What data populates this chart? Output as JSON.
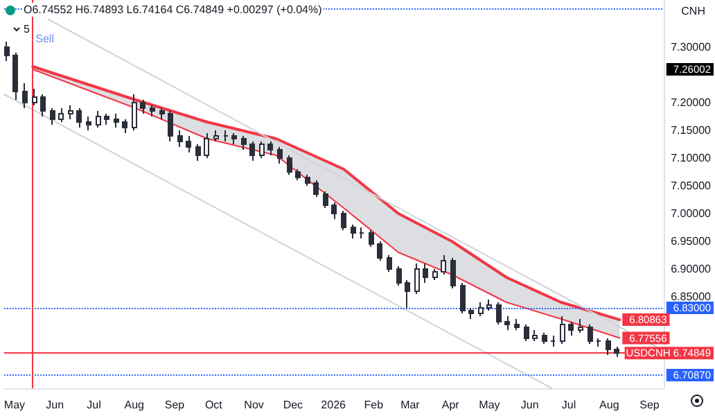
{
  "chart_data": {
    "type": "candlestick",
    "color": "#2a2e39",
    "x": [
      "2025-04-25",
      "2025-05-02",
      "2025-05-09",
      "2025-05-16",
      "2025-05-23",
      "2025-05-30",
      "2025-06-06",
      "2025-06-13",
      "2025-06-20",
      "2025-06-27",
      "2025-07-04",
      "2025-07-11",
      "2025-07-18",
      "2025-07-25",
      "2025-08-01",
      "2025-08-08",
      "2025-08-15",
      "2025-08-22",
      "2025-08-29",
      "2025-09-05",
      "2025-09-12",
      "2025-09-19",
      "2025-09-26",
      "2025-10-03",
      "2025-10-10",
      "2025-10-17",
      "2025-10-24",
      "2025-10-31",
      "2025-11-07",
      "2025-11-14",
      "2025-11-21",
      "2025-11-28",
      "2025-12-05",
      "2025-12-12",
      "2025-12-19",
      "2025-12-26",
      "2026-01-02",
      "2026-01-09",
      "2026-01-16",
      "2026-01-23",
      "2026-01-30",
      "2026-02-06",
      "2026-02-13",
      "2026-02-20",
      "2026-02-27",
      "2026-03-06",
      "2026-03-13",
      "2026-03-20",
      "2026-03-27",
      "2026-04-03",
      "2026-04-10",
      "2026-04-17",
      "2026-04-24",
      "2026-05-01",
      "2026-05-08",
      "2026-05-15",
      "2026-05-22",
      "2026-05-29",
      "2026-06-05",
      "2026-06-12",
      "2026-06-19",
      "2026-06-26",
      "2026-07-03",
      "2026-07-10",
      "2026-07-17",
      "2026-07-24",
      "2026-07-31",
      "2026-08-07"
    ],
    "ohlc": [
      [
        7.3,
        7.31,
        7.275,
        7.285
      ],
      [
        7.285,
        7.29,
        7.205,
        7.22
      ],
      [
        7.22,
        7.235,
        7.19,
        7.2
      ],
      [
        7.2,
        7.225,
        7.195,
        7.21
      ],
      [
        7.21,
        7.215,
        7.175,
        7.185
      ],
      [
        7.185,
        7.19,
        7.16,
        7.17
      ],
      [
        7.17,
        7.19,
        7.165,
        7.18
      ],
      [
        7.18,
        7.195,
        7.17,
        7.185
      ],
      [
        7.185,
        7.19,
        7.155,
        7.165
      ],
      [
        7.165,
        7.175,
        7.15,
        7.16
      ],
      [
        7.16,
        7.185,
        7.155,
        7.175
      ],
      [
        7.175,
        7.18,
        7.16,
        7.17
      ],
      [
        7.17,
        7.18,
        7.155,
        7.165
      ],
      [
        7.165,
        7.17,
        7.145,
        7.155
      ],
      [
        7.155,
        7.215,
        7.15,
        7.2
      ],
      [
        7.2,
        7.205,
        7.18,
        7.19
      ],
      [
        7.19,
        7.195,
        7.175,
        7.185
      ],
      [
        7.185,
        7.19,
        7.17,
        7.18
      ],
      [
        7.18,
        7.185,
        7.13,
        7.14
      ],
      [
        7.14,
        7.15,
        7.12,
        7.13
      ],
      [
        7.13,
        7.14,
        7.11,
        7.12
      ],
      [
        7.12,
        7.125,
        7.095,
        7.105
      ],
      [
        7.105,
        7.145,
        7.1,
        7.135
      ],
      [
        7.135,
        7.15,
        7.13,
        7.14
      ],
      [
        7.14,
        7.15,
        7.13,
        7.14
      ],
      [
        7.14,
        7.145,
        7.125,
        7.135
      ],
      [
        7.135,
        7.14,
        7.115,
        7.125
      ],
      [
        7.125,
        7.13,
        7.095,
        7.105
      ],
      [
        7.105,
        7.13,
        7.1,
        7.125
      ],
      [
        7.125,
        7.13,
        7.105,
        7.115
      ],
      [
        7.115,
        7.12,
        7.09,
        7.1
      ],
      [
        7.1,
        7.105,
        7.07,
        7.075
      ],
      [
        7.075,
        7.08,
        7.06,
        7.065
      ],
      [
        7.065,
        7.07,
        7.05,
        7.055
      ],
      [
        7.055,
        7.06,
        7.03,
        7.035
      ],
      [
        7.035,
        7.04,
        7.01,
        7.015
      ],
      [
        7.015,
        7.02,
        6.99,
        7.0
      ],
      [
        7.0,
        7.005,
        6.97,
        6.975
      ],
      [
        6.975,
        6.98,
        6.955,
        6.965
      ],
      [
        6.965,
        6.975,
        6.955,
        6.965
      ],
      [
        6.965,
        6.97,
        6.94,
        6.945
      ],
      [
        6.945,
        6.95,
        6.915,
        6.92
      ],
      [
        6.92,
        6.925,
        6.895,
        6.9
      ],
      [
        6.9,
        6.905,
        6.87,
        6.875
      ],
      [
        6.875,
        6.88,
        6.83,
        6.86
      ],
      [
        6.86,
        6.91,
        6.855,
        6.9
      ],
      [
        6.9,
        6.91,
        6.875,
        6.885
      ],
      [
        6.885,
        6.9,
        6.88,
        6.895
      ],
      [
        6.895,
        6.925,
        6.89,
        6.915
      ],
      [
        6.915,
        6.92,
        6.865,
        6.87
      ],
      [
        6.87,
        6.875,
        6.82,
        6.825
      ],
      [
        6.825,
        6.83,
        6.81,
        6.82
      ],
      [
        6.82,
        6.84,
        6.815,
        6.83
      ],
      [
        6.83,
        6.845,
        6.825,
        6.835
      ],
      [
        6.835,
        6.84,
        6.8,
        6.805
      ],
      [
        6.805,
        6.815,
        6.79,
        6.8
      ],
      [
        6.8,
        6.81,
        6.79,
        6.795
      ],
      [
        6.795,
        6.8,
        6.77,
        6.775
      ],
      [
        6.775,
        6.79,
        6.77,
        6.78
      ],
      [
        6.78,
        6.785,
        6.765,
        6.77
      ],
      [
        6.77,
        6.78,
        6.76,
        6.77
      ],
      [
        6.77,
        6.815,
        6.765,
        6.8
      ],
      [
        6.8,
        6.805,
        6.78,
        6.79
      ],
      [
        6.79,
        6.81,
        6.785,
        6.795
      ],
      [
        6.795,
        6.8,
        6.765,
        6.77
      ],
      [
        6.77,
        6.775,
        6.76,
        6.77
      ],
      [
        6.77,
        6.775,
        6.745,
        6.755
      ],
      [
        6.755,
        6.76,
        6.74164,
        6.74849
      ]
    ],
    "series": [
      {
        "type": "line",
        "color": "#f23645",
        "x": [
          "2025-05-15",
          "2025-08-02",
          "2025-09-26",
          "2025-11-18",
          "2026-01-09",
          "2026-02-20",
          "2026-04-02",
          "2026-05-14",
          "2026-06-25",
          "2026-08-09"
        ],
        "values": [
          7.265,
          7.205,
          7.165,
          7.135,
          7.08,
          7.0,
          6.95,
          6.885,
          6.84,
          6.80863
        ],
        "upper": [
          7.265,
          7.205,
          7.165,
          7.135,
          7.08,
          7.0,
          6.95,
          6.885,
          6.84,
          6.80863
        ],
        "lower": [
          7.26,
          7.19,
          7.135,
          7.105,
          7.01,
          6.93,
          6.89,
          6.84,
          6.81,
          6.77556
        ],
        "value_labels": [
          null,
          null,
          null,
          null,
          null,
          null,
          null,
          null,
          null,
          "6.80863"
        ]
      },
      {
        "type": "line",
        "color": "#f23645",
        "x": [
          "2025-05-15",
          "2025-08-02",
          "2025-09-26",
          "2025-11-18",
          "2026-01-09",
          "2026-02-20",
          "2026-04-02",
          "2026-05-14",
          "2026-06-25",
          "2026-08-09"
        ],
        "values": [
          7.26,
          7.19,
          7.135,
          7.105,
          7.01,
          6.93,
          6.89,
          6.84,
          6.81,
          6.77556
        ],
        "value_labels": [
          null,
          null,
          null,
          null,
          null,
          null,
          null,
          null,
          null,
          "6.77556"
        ]
      },
      {
        "type": "line",
        "color": "#d1d4dc",
        "x": [
          "2025-05-27",
          "2026-09-06"
        ],
        "values": [
          7.35,
          6.76
        ]
      },
      {
        "type": "line",
        "color": "#d1d4dc",
        "x": [
          "2025-04-23",
          "2026-06-18"
        ],
        "values": [
          7.215,
          6.685
        ]
      }
    ],
    "xlim": [
      "2025-04-23",
      "2026-09-12"
    ],
    "xticks": [
      {
        "value": "2025-05-01",
        "label": "May"
      },
      {
        "value": "2025-06-01",
        "label": "Jun"
      },
      {
        "value": "2025-07-01",
        "label": "Jul"
      },
      {
        "value": "2025-08-01",
        "label": "Aug"
      },
      {
        "value": "2025-09-01",
        "label": "Sep"
      },
      {
        "value": "2025-10-01",
        "label": "Oct"
      },
      {
        "value": "2025-11-01",
        "label": "Nov"
      },
      {
        "value": "2025-12-01",
        "label": "Dec"
      },
      {
        "value": "2026-01-01",
        "label": "2026"
      },
      {
        "value": "2026-02-01",
        "label": "Feb"
      },
      {
        "value": "2026-03-01",
        "label": "Mar"
      },
      {
        "value": "2026-04-01",
        "label": "Apr"
      },
      {
        "value": "2026-05-01",
        "label": "May"
      },
      {
        "value": "2026-06-01",
        "label": "Jun"
      },
      {
        "value": "2026-07-01",
        "label": "Jul"
      },
      {
        "value": "2026-08-01",
        "label": "Aug"
      },
      {
        "value": "2026-09-01",
        "label": "Sep"
      }
    ],
    "ylim": [
      6.685,
      7.385
    ],
    "yticks": [
      {
        "value": 6.85,
        "label": "6.85000"
      },
      {
        "value": 6.9,
        "label": "6.90000"
      },
      {
        "value": 6.95,
        "label": "6.95000"
      },
      {
        "value": 7.0,
        "label": "7.00000"
      },
      {
        "value": 7.05,
        "label": "7.05000"
      },
      {
        "value": 7.1,
        "label": "7.10000"
      },
      {
        "value": 7.15,
        "label": "7.15000"
      },
      {
        "value": 7.2,
        "label": "7.20000"
      },
      {
        "value": 7.3,
        "label": "7.30000"
      }
    ],
    "ref_lines": [
      {
        "axis": "y",
        "value": 7.3725,
        "color": "#2962ff",
        "line_style": "dotted"
      },
      {
        "axis": "y",
        "value": 6.83,
        "label": "6.83000",
        "color": "#2962ff",
        "line_style": "dotted"
      },
      {
        "axis": "y",
        "value": 6.7087,
        "label": "6.70870",
        "color": "#2962ff",
        "line_style": "dotted"
      },
      {
        "axis": "y",
        "value": 6.74849,
        "label": "USDCNH 6.74849",
        "color": "#f23645",
        "line_style": "solid"
      },
      {
        "axis": "x",
        "value": "2025-05-15",
        "color": "#f23645",
        "line_style": "solid"
      }
    ],
    "annotations": [
      "O6.74552 H6.74893 L6.74164 C6.74849 +0.00297 (+0.04%)",
      "5",
      "CNH",
      {
        "text": "Sell",
        "x": "2025-05-15"
      },
      "7.26002"
    ],
    "grid": false
  }
}
